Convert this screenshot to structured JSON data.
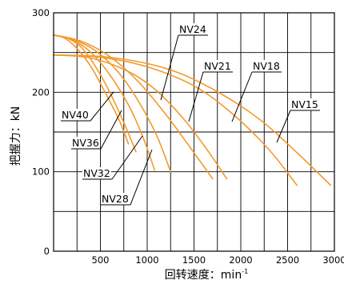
{
  "chart_data": {
    "type": "line",
    "xlabel": "回转速度：min",
    "xlabel_sup": "-1",
    "ylabel": "把握力：kN",
    "xlim": [
      0,
      3000
    ],
    "ylim": [
      0,
      300
    ],
    "x_tick_labels": [
      "500",
      "1000",
      "1500",
      "2000",
      "2500",
      "3000"
    ],
    "x_ticks": [
      500,
      1000,
      1500,
      2000,
      2500,
      3000
    ],
    "y_tick_labels": [
      "0",
      "100",
      "200",
      "300"
    ],
    "y_ticks": [
      0,
      100,
      200,
      300
    ],
    "minor_x_grid_step": 250,
    "minor_y_grid_step": 50,
    "grid": true,
    "line_color": "#F39A2B",
    "series": [
      {
        "name": "NV40",
        "x": [
          0,
          120,
          250,
          400,
          550,
          700,
          800
        ],
        "y": [
          272,
          268,
          255,
          232,
          200,
          165,
          135
        ]
      },
      {
        "name": "NV36",
        "x": [
          0,
          150,
          300,
          450,
          600,
          750,
          880
        ],
        "y": [
          272,
          268,
          256,
          232,
          200,
          162,
          125
        ]
      },
      {
        "name": "NV32",
        "x": [
          0,
          200,
          400,
          600,
          800,
          950,
          1080
        ],
        "y": [
          272,
          266,
          250,
          222,
          184,
          145,
          102
        ]
      },
      {
        "name": "NV28",
        "x": [
          0,
          200,
          450,
          700,
          900,
          1100,
          1250
        ],
        "y": [
          272,
          267,
          252,
          224,
          190,
          146,
          100
        ]
      },
      {
        "name": "NV24",
        "x": [
          0,
          300,
          600,
          900,
          1200,
          1450,
          1700
        ],
        "y": [
          272,
          264,
          245,
          214,
          172,
          132,
          91
        ]
      },
      {
        "name": "NV21",
        "x": [
          0,
          400,
          800,
          1100,
          1400,
          1650,
          1850
        ],
        "y": [
          247,
          243,
          226,
          202,
          165,
          126,
          91
        ]
      },
      {
        "name": "NV18",
        "x": [
          0,
          500,
          1000,
          1500,
          1900,
          2300,
          2600
        ],
        "y": [
          247,
          244,
          232,
          208,
          174,
          128,
          83
        ]
      },
      {
        "name": "NV15",
        "x": [
          0,
          600,
          1200,
          1700,
          2200,
          2600,
          2960
        ],
        "y": [
          247,
          244,
          230,
          204,
          166,
          124,
          83
        ]
      }
    ],
    "labels": [
      {
        "series": "NV24",
        "text": "NV24"
      },
      {
        "series": "NV21",
        "text": "NV21"
      },
      {
        "series": "NV18",
        "text": "NV18"
      },
      {
        "series": "NV15",
        "text": "NV15"
      },
      {
        "series": "NV40",
        "text": "NV40"
      },
      {
        "series": "NV36",
        "text": "NV36"
      },
      {
        "series": "NV32",
        "text": "NV32"
      },
      {
        "series": "NV28",
        "text": "NV28"
      }
    ]
  }
}
